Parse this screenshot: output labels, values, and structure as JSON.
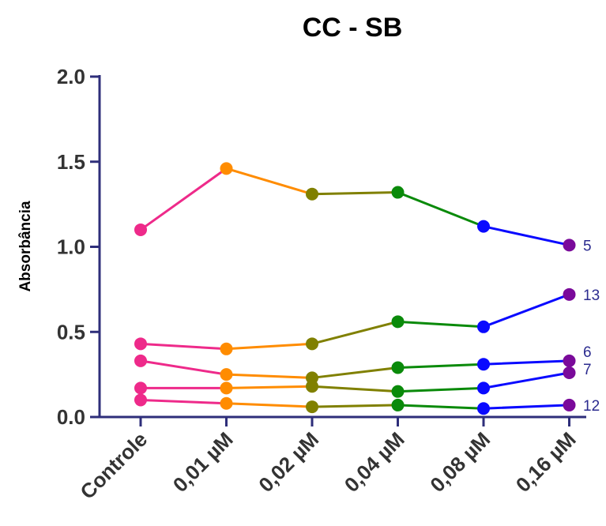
{
  "chart_data": {
    "type": "line",
    "title": "CC - SB",
    "xlabel": "",
    "ylabel": "Absorbância",
    "categories": [
      "Controle",
      "0,01 µM",
      "0,02 µM",
      "0,04 µM",
      "0,08 µM",
      "0,16 µM"
    ],
    "y_ticks": [
      "0.0",
      "0.5",
      "1.0",
      "1.5",
      "2.0"
    ],
    "ylim": [
      0,
      2.0
    ],
    "segment_colors": [
      "#ee2a8a",
      "#ff8c00",
      "#808000",
      "#0a8a0a",
      "#0a0aff"
    ],
    "point_colors": [
      "#ee2a8a",
      "#ff8c00",
      "#808000",
      "#0a8a0a",
      "#0a0aff",
      "#7a0a9a"
    ],
    "series": [
      {
        "name": "5",
        "values": [
          1.1,
          1.46,
          1.31,
          1.32,
          1.12,
          1.01
        ]
      },
      {
        "name": "13",
        "values": [
          0.43,
          0.4,
          0.43,
          0.56,
          0.53,
          0.72
        ]
      },
      {
        "name": "6",
        "values": [
          0.33,
          0.25,
          0.23,
          0.29,
          0.31,
          0.33
        ]
      },
      {
        "name": "7",
        "values": [
          0.17,
          0.17,
          0.18,
          0.15,
          0.17,
          0.26
        ]
      },
      {
        "name": "12",
        "values": [
          0.1,
          0.08,
          0.06,
          0.07,
          0.05,
          0.07
        ]
      }
    ],
    "grid": false
  }
}
